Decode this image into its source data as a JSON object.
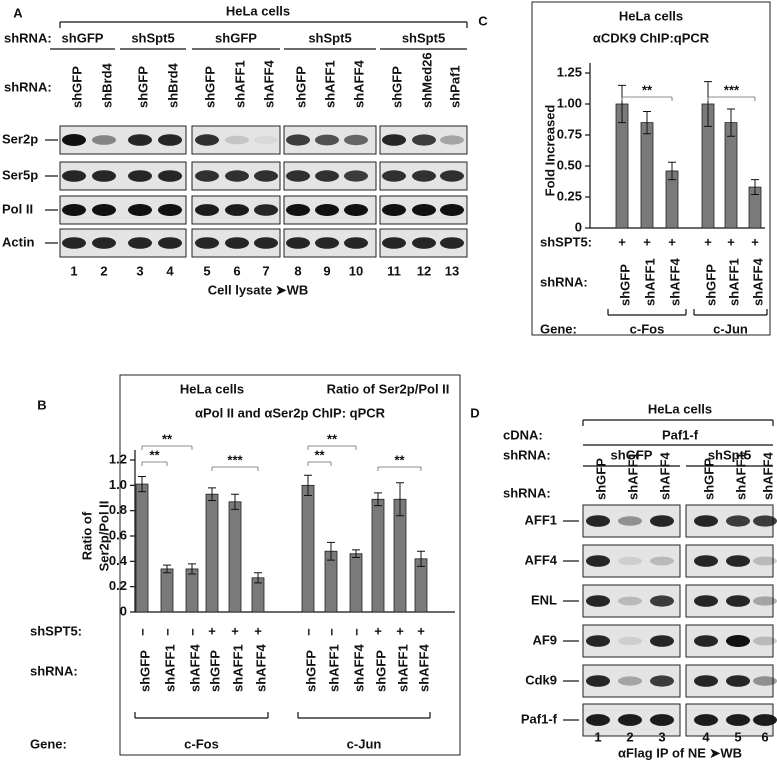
{
  "panel_a": {
    "label": "A",
    "title": "HeLa cells",
    "group_label": "shRNA:",
    "groups": [
      "shGFP",
      "shSpt5",
      "shGFP",
      "shSpt5",
      "shSpt5"
    ],
    "lane_label": "shRNA:",
    "lanes": [
      "shGFP",
      "shBrd4",
      "shGFP",
      "shBrd4",
      "shGFP",
      "shAFF1",
      "shAFF4",
      "shGFP",
      "shAFF1",
      "shAFF4",
      "shGFP",
      "shMed26",
      "shPaf1"
    ],
    "rows": [
      "Ser2p",
      "Ser5p",
      "Pol II",
      "Actin"
    ],
    "lane_numbers": [
      1,
      2,
      3,
      4,
      5,
      6,
      7,
      8,
      9,
      10,
      11,
      12,
      13
    ],
    "footer": "Cell lysate ➤WB"
  },
  "panel_d": {
    "label": "D",
    "title": "HeLa cells",
    "cdna_label": "cDNA:",
    "cdna": "Paf1-f",
    "group_label": "shRNA:",
    "groups": [
      "shGFP",
      "shSpt5"
    ],
    "lane_label": "shRNA:",
    "lanes": [
      "shGFP",
      "shAFF1",
      "shAFF4",
      "shGFP",
      "shAFF1",
      "shAFF4"
    ],
    "rows": [
      "AFF1",
      "AFF4",
      "ENL",
      "AF9",
      "Cdk9",
      "Paf1-f"
    ],
    "lane_numbers": [
      1,
      2,
      3,
      4,
      5,
      6
    ],
    "footer": "αFlag IP of NE ➤WB"
  },
  "chart_data": [
    {
      "panel": "B",
      "type": "bar",
      "title": "HeLa cells",
      "subtitle": "Ratio of Ser2p/Pol II",
      "annotation": "αPol II and αSer2p ChIP: qPCR",
      "ylabel": [
        "Ratio of",
        "Ser2p/Pol II"
      ],
      "categories": [
        "shGFP",
        "shAFF1",
        "shAFF4",
        "shGFP",
        "shAFF1",
        "shAFF4",
        "shGFP",
        "shAFF1",
        "shAFF4",
        "shGFP",
        "shAFF1",
        "shAFF4"
      ],
      "values": [
        1.01,
        0.34,
        0.34,
        0.93,
        0.87,
        0.27,
        1.0,
        0.48,
        0.46,
        0.89,
        0.89,
        0.42
      ],
      "errors": [
        0.06,
        0.03,
        0.04,
        0.05,
        0.06,
        0.04,
        0.08,
        0.07,
        0.03,
        0.05,
        0.13,
        0.06
      ],
      "color": "#7a7a7a",
      "ylim": [
        0,
        1.2
      ],
      "yticks": [
        0,
        0.2,
        0.4,
        0.6,
        0.8,
        {
          "value": 1,
          "label": "1.0"
        },
        1.2
      ],
      "row_labels": [
        "shSPT5:",
        "shRNA:",
        "Gene:"
      ],
      "shspt5": [
        "−",
        "−",
        "−",
        "+",
        "+",
        "+",
        "−",
        "−",
        "−",
        "+",
        "+",
        "+"
      ],
      "genes": [
        "c-Fos",
        "c-Jun"
      ],
      "significance": [
        "**",
        "**",
        "***",
        "**",
        "**",
        "**"
      ]
    },
    {
      "panel": "C",
      "type": "bar",
      "title": "HeLa cells",
      "subtitle": "αCDK9 ChIP:qPCR",
      "ylabel": [
        "Fold Increased"
      ],
      "categories": [
        "shGFP",
        "shAFF1",
        "shAFF4",
        "shGFP",
        "shAFF1",
        "shAFF4"
      ],
      "values": [
        1.0,
        0.85,
        0.46,
        1.0,
        0.85,
        0.33
      ],
      "errors": [
        0.15,
        0.09,
        0.07,
        0.18,
        0.11,
        0.06
      ],
      "color": "#7a7a7a",
      "ylim": [
        0,
        1.25
      ],
      "yticks": [
        0,
        0.25,
        {
          "value": 0.5,
          "label": "0.50"
        },
        0.75,
        {
          "value": 1,
          "label": "1.00"
        },
        1.25
      ],
      "row_labels": [
        "shSPT5:",
        "shRNA:",
        "Gene:"
      ],
      "shspt5": [
        "+",
        "+",
        "+",
        "+",
        "+",
        "+"
      ],
      "genes": [
        "c-Fos",
        "c-Jun"
      ],
      "significance": [
        "**",
        "***"
      ]
    }
  ]
}
